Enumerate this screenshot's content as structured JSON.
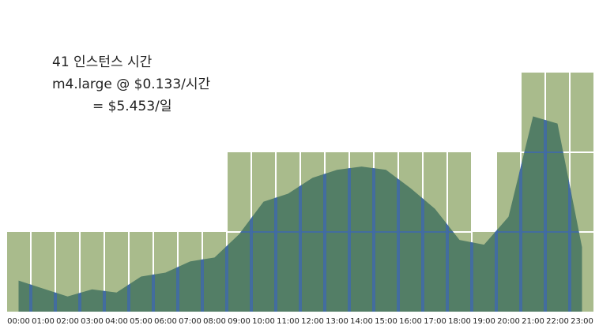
{
  "chart_data": {
    "type": "bar",
    "annotations": [
      "41 인스턴스 시간",
      "m4.large @ $0.133/시간",
      "= $5.453/일"
    ],
    "categories": [
      "00:00",
      "01:00",
      "02:00",
      "03:00",
      "04:00",
      "05:00",
      "06:00",
      "07:00",
      "08:00",
      "09:00",
      "10:00",
      "11:00",
      "12:00",
      "13:00",
      "14:00",
      "15:00",
      "16:00",
      "17:00",
      "18:00",
      "19:00",
      "20:00",
      "21:00",
      "22:00",
      "23:00"
    ],
    "series": [
      {
        "type": "bar",
        "color": "#a9bb8c",
        "values": [
          1,
          1,
          1,
          1,
          1,
          1,
          1,
          1,
          1,
          2,
          2,
          2,
          2,
          2,
          2,
          2,
          2,
          2,
          2,
          1,
          2,
          3,
          3,
          3
        ]
      },
      {
        "type": "area",
        "color": "#4e7a64",
        "values": [
          0.39,
          0.29,
          0.19,
          0.28,
          0.24,
          0.44,
          0.49,
          0.63,
          0.68,
          0.97,
          1.38,
          1.48,
          1.68,
          1.78,
          1.82,
          1.78,
          1.55,
          1.29,
          0.9,
          0.84,
          1.19,
          2.45,
          2.36,
          0.81
        ]
      }
    ]
  }
}
